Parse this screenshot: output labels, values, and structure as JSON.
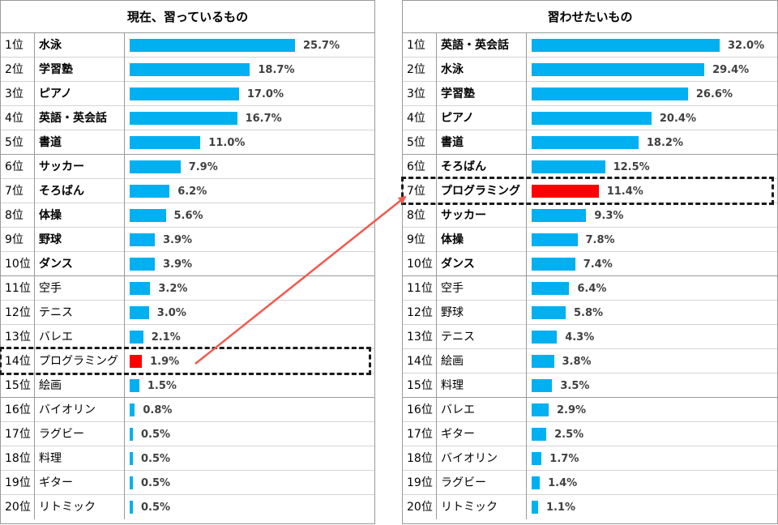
{
  "colors": {
    "bar": "#00b0f0",
    "highlight": "#ff0000",
    "arrow": "#f05a4f"
  },
  "chart_data": [
    {
      "type": "bar",
      "title": "現在、習っているもの",
      "max": 25.7,
      "highlight_index": 13,
      "rows": [
        {
          "rank": "1位",
          "label": "水泳",
          "value": 25.7,
          "value_label": "25.7%",
          "bold": true
        },
        {
          "rank": "2位",
          "label": "学習塾",
          "value": 18.7,
          "value_label": "18.7%",
          "bold": true
        },
        {
          "rank": "3位",
          "label": "ピアノ",
          "value": 17.0,
          "value_label": "17.0%",
          "bold": true
        },
        {
          "rank": "4位",
          "label": "英語・英会話",
          "value": 16.7,
          "value_label": "16.7%",
          "bold": true
        },
        {
          "rank": "5位",
          "label": "書道",
          "value": 11.0,
          "value_label": "11.0%",
          "bold": true
        },
        {
          "rank": "6位",
          "label": "サッカー",
          "value": 7.9,
          "value_label": "7.9%",
          "bold": true
        },
        {
          "rank": "7位",
          "label": "そろばん",
          "value": 6.2,
          "value_label": "6.2%",
          "bold": true
        },
        {
          "rank": "8位",
          "label": "体操",
          "value": 5.6,
          "value_label": "5.6%",
          "bold": true
        },
        {
          "rank": "9位",
          "label": "野球",
          "value": 3.9,
          "value_label": "3.9%",
          "bold": true
        },
        {
          "rank": "10位",
          "label": "ダンス",
          "value": 3.9,
          "value_label": "3.9%",
          "bold": true
        },
        {
          "rank": "11位",
          "label": "空手",
          "value": 3.2,
          "value_label": "3.2%",
          "bold": false
        },
        {
          "rank": "12位",
          "label": "テニス",
          "value": 3.0,
          "value_label": "3.0%",
          "bold": false
        },
        {
          "rank": "13位",
          "label": "バレエ",
          "value": 2.1,
          "value_label": "2.1%",
          "bold": false
        },
        {
          "rank": "14位",
          "label": "プログラミング",
          "value": 1.9,
          "value_label": "1.9%",
          "bold": false
        },
        {
          "rank": "15位",
          "label": "絵画",
          "value": 1.5,
          "value_label": "1.5%",
          "bold": false
        },
        {
          "rank": "16位",
          "label": "バイオリン",
          "value": 0.8,
          "value_label": "0.8%",
          "bold": false
        },
        {
          "rank": "17位",
          "label": "ラグビー",
          "value": 0.5,
          "value_label": "0.5%",
          "bold": false
        },
        {
          "rank": "18位",
          "label": "料理",
          "value": 0.5,
          "value_label": "0.5%",
          "bold": false
        },
        {
          "rank": "19位",
          "label": "ギター",
          "value": 0.5,
          "value_label": "0.5%",
          "bold": false
        },
        {
          "rank": "20位",
          "label": "リトミック",
          "value": 0.5,
          "value_label": "0.5%",
          "bold": false
        }
      ]
    },
    {
      "type": "bar",
      "title": "習わせたいもの",
      "max": 32.0,
      "highlight_index": 6,
      "rows": [
        {
          "rank": "1位",
          "label": "英語・英会話",
          "value": 32.0,
          "value_label": "32.0%",
          "bold": true
        },
        {
          "rank": "2位",
          "label": "水泳",
          "value": 29.4,
          "value_label": "29.4%",
          "bold": true
        },
        {
          "rank": "3位",
          "label": "学習塾",
          "value": 26.6,
          "value_label": "26.6%",
          "bold": true
        },
        {
          "rank": "4位",
          "label": "ピアノ",
          "value": 20.4,
          "value_label": "20.4%",
          "bold": true
        },
        {
          "rank": "5位",
          "label": "書道",
          "value": 18.2,
          "value_label": "18.2%",
          "bold": true
        },
        {
          "rank": "6位",
          "label": "そろばん",
          "value": 12.5,
          "value_label": "12.5%",
          "bold": true
        },
        {
          "rank": "7位",
          "label": "プログラミング",
          "value": 11.4,
          "value_label": "11.4%",
          "bold": true
        },
        {
          "rank": "8位",
          "label": "サッカー",
          "value": 9.3,
          "value_label": "9.3%",
          "bold": true
        },
        {
          "rank": "9位",
          "label": "体操",
          "value": 7.8,
          "value_label": "7.8%",
          "bold": true
        },
        {
          "rank": "10位",
          "label": "ダンス",
          "value": 7.4,
          "value_label": "7.4%",
          "bold": true
        },
        {
          "rank": "11位",
          "label": "空手",
          "value": 6.4,
          "value_label": "6.4%",
          "bold": false
        },
        {
          "rank": "12位",
          "label": "野球",
          "value": 5.8,
          "value_label": "5.8%",
          "bold": false
        },
        {
          "rank": "13位",
          "label": "テニス",
          "value": 4.3,
          "value_label": "4.3%",
          "bold": false
        },
        {
          "rank": "14位",
          "label": "絵画",
          "value": 3.8,
          "value_label": "3.8%",
          "bold": false
        },
        {
          "rank": "15位",
          "label": "料理",
          "value": 3.5,
          "value_label": "3.5%",
          "bold": false
        },
        {
          "rank": "16位",
          "label": "バレエ",
          "value": 2.9,
          "value_label": "2.9%",
          "bold": false
        },
        {
          "rank": "17位",
          "label": "ギター",
          "value": 2.5,
          "value_label": "2.5%",
          "bold": false
        },
        {
          "rank": "18位",
          "label": "バイオリン",
          "value": 1.7,
          "value_label": "1.7%",
          "bold": false
        },
        {
          "rank": "19位",
          "label": "ラグビー",
          "value": 1.4,
          "value_label": "1.4%",
          "bold": false
        },
        {
          "rank": "20位",
          "label": "リトミック",
          "value": 1.1,
          "value_label": "1.1%",
          "bold": false
        }
      ]
    }
  ]
}
